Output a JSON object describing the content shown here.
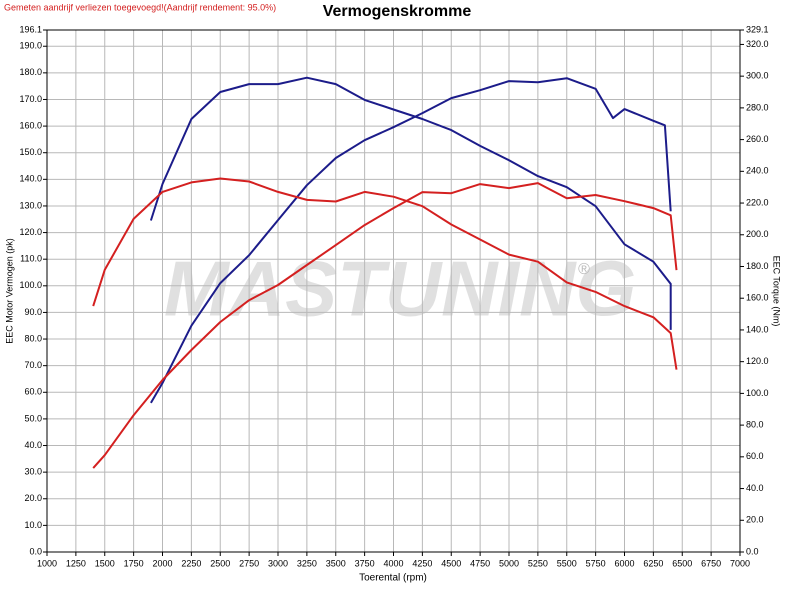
{
  "chart_data": {
    "type": "line",
    "title": "Vermogenskromme",
    "note": "Gemeten aandrijf verliezen toegevoegd!(Aandrijf rendement: 95.0%)",
    "watermark": "MASTUNING",
    "watermark_mark": "®",
    "xlabel": "Toerental (rpm)",
    "ylabel": "EEC Motor Vermogen (pk)",
    "y2label": "EEC Torque (Nm)",
    "grid": true,
    "xlim": [
      1000,
      7000
    ],
    "xticks": [
      1000,
      1250,
      1500,
      1750,
      2000,
      2250,
      2500,
      2750,
      3000,
      3250,
      3500,
      3750,
      4000,
      4250,
      4500,
      4750,
      5000,
      5250,
      5500,
      5750,
      6000,
      6250,
      6500,
      6750,
      7000
    ],
    "ylim": [
      0,
      196.1
    ],
    "yticks": [
      {
        "value": 0,
        "label": "0.0"
      },
      {
        "value": 10,
        "label": "10.0"
      },
      {
        "value": 20,
        "label": "20.0"
      },
      {
        "value": 30,
        "label": "30.0"
      },
      {
        "value": 40,
        "label": "40.0"
      },
      {
        "value": 50,
        "label": "50.0"
      },
      {
        "value": 60,
        "label": "60.0"
      },
      {
        "value": 70,
        "label": "70.0"
      },
      {
        "value": 80,
        "label": "80.0"
      },
      {
        "value": 90,
        "label": "90.0"
      },
      {
        "value": 100,
        "label": "100.0"
      },
      {
        "value": 110,
        "label": "110.0"
      },
      {
        "value": 120,
        "label": "120.0"
      },
      {
        "value": 130,
        "label": "130.0"
      },
      {
        "value": 140,
        "label": "140.0"
      },
      {
        "value": 150,
        "label": "150.0"
      },
      {
        "value": 160,
        "label": "160.0"
      },
      {
        "value": 170,
        "label": "170.0"
      },
      {
        "value": 180,
        "label": "180.0"
      },
      {
        "value": 190,
        "label": "190.0"
      },
      196.1
    ],
    "y2lim": [
      0,
      329.1
    ],
    "y2ticks": [
      {
        "value": 0,
        "label": "0.0"
      },
      {
        "value": 20,
        "label": "20.0"
      },
      {
        "value": 40,
        "label": "40.0"
      },
      {
        "value": 60,
        "label": "60.0"
      },
      {
        "value": 80,
        "label": "80.0"
      },
      {
        "value": 100,
        "label": "100.0"
      },
      {
        "value": 120,
        "label": "120.0"
      },
      {
        "value": 140,
        "label": "140.0"
      },
      {
        "value": 160,
        "label": "160.0"
      },
      {
        "value": 180,
        "label": "180.0"
      },
      {
        "value": 200,
        "label": "200.0"
      },
      {
        "value": 220,
        "label": "220.0"
      },
      {
        "value": 240,
        "label": "240.0"
      },
      {
        "value": 260,
        "label": "260.0"
      },
      {
        "value": 280,
        "label": "280.0"
      },
      {
        "value": 300,
        "label": "300.0"
      },
      {
        "value": 320,
        "label": "320.0"
      },
      329.1
    ],
    "series": [
      {
        "color": "#1c1c8a",
        "axis": "y2",
        "x": [
          1900,
          2000,
          2250,
          2500,
          2750,
          3000,
          3250,
          3500,
          3750,
          4000,
          4250,
          4500,
          4750,
          5000,
          5250,
          5500,
          5750,
          6000,
          6250,
          6400,
          6400
        ],
        "values": [
          209,
          232,
          273,
          290,
          295,
          295,
          299,
          295,
          285,
          279,
          273,
          266,
          256,
          247,
          237,
          230,
          218,
          194,
          183,
          169,
          140
        ]
      },
      {
        "color": "#1c1c8a",
        "x": [
          1900,
          2000,
          2250,
          2500,
          2750,
          3000,
          3250,
          3500,
          3750,
          4000,
          4250,
          4500,
          4750,
          5000,
          5250,
          5500,
          5750,
          5900,
          6000,
          6250,
          6350,
          6400
        ],
        "values": [
          56,
          63.5,
          85,
          101,
          111.5,
          124.7,
          137.8,
          148,
          154.7,
          159.6,
          164.9,
          170.5,
          173.5,
          176.9,
          176.5,
          178,
          174,
          163,
          166.4,
          162,
          160.3,
          128
        ]
      },
      {
        "color": "#d42020",
        "axis": "y2",
        "x": [
          1400,
          1500,
          1750,
          2000,
          2250,
          2500,
          2750,
          3000,
          3250,
          3500,
          3750,
          4000,
          4250,
          4500,
          4750,
          5000,
          5250,
          5500,
          5750,
          6000,
          6250,
          6400,
          6450
        ],
        "values": [
          155,
          178,
          210,
          227,
          233,
          235.5,
          233.6,
          227,
          222,
          221,
          227,
          224,
          218,
          206.5,
          197,
          187.5,
          183,
          170,
          164,
          155,
          148,
          138,
          115
        ]
      },
      {
        "color": "#d42020",
        "x": [
          1400,
          1500,
          1750,
          2000,
          2250,
          2500,
          2750,
          3000,
          3250,
          3500,
          3750,
          4000,
          4250,
          4500,
          4750,
          5000,
          5250,
          5500,
          5750,
          6000,
          6250,
          6400,
          6450
        ],
        "values": [
          31.5,
          36.4,
          51.4,
          64.6,
          75.9,
          86.4,
          94.6,
          100.3,
          107.8,
          115.3,
          122.8,
          129.2,
          135.2,
          134.8,
          138.2,
          136.7,
          138.6,
          132.9,
          134.1,
          131.8,
          129.2,
          126.5,
          105.9
        ]
      }
    ]
  }
}
